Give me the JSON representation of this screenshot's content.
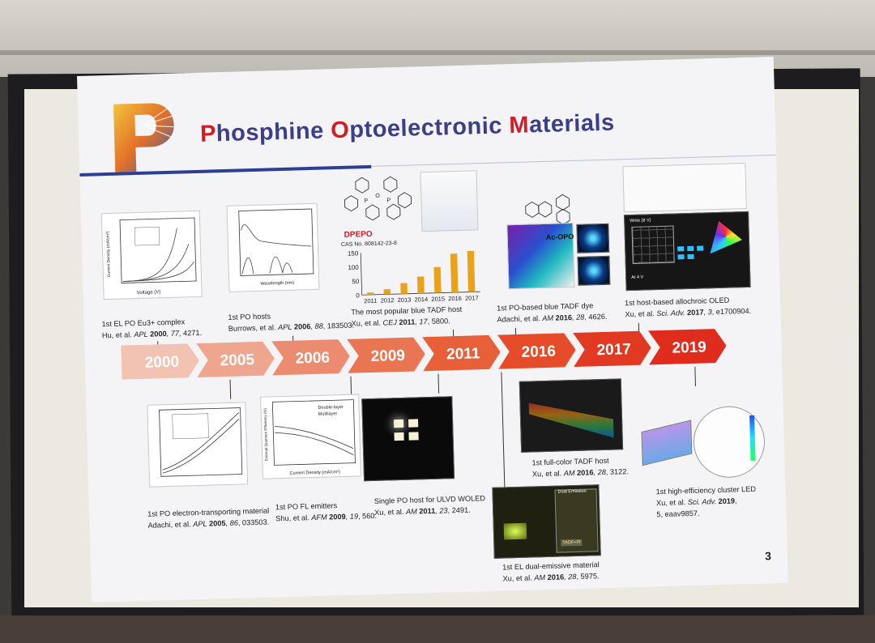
{
  "slide": {
    "title_parts": [
      {
        "text": "P",
        "red": true
      },
      {
        "text": "hosphine ",
        "red": false
      },
      {
        "text": "O",
        "red": true
      },
      {
        "text": "ptoelectronic ",
        "red": false
      },
      {
        "text": "M",
        "red": true
      },
      {
        "text": "aterials",
        "red": false
      }
    ],
    "page_number": "3",
    "logo_letter": "P"
  },
  "timeline": {
    "years": [
      "2000",
      "2005",
      "2006",
      "2009",
      "2011",
      "2016",
      "2017",
      "2019"
    ],
    "colors": [
      "#f2c2b3",
      "#eea68f",
      "#eb8c70",
      "#ea7552",
      "#e8603a",
      "#e54d2a",
      "#e23a22",
      "#df2c1c"
    ]
  },
  "top_captions": [
    {
      "line1": "1st EL PO Eu3+ complex",
      "line2_a": "Hu, et al. ",
      "line2_j": "APL",
      "line2_y": " 2000",
      "line2_v": ", 77",
      "line2_p": ", 4271."
    },
    {
      "line1": "1st PO hosts",
      "line2_a": "Burrows, et al. ",
      "line2_j": "APL",
      "line2_y": " 2006",
      "line2_v": ", 88",
      "line2_p": ", 183503."
    },
    {
      "line1": "The most popular blue TADF host",
      "line2_a": "Xu, et al. ",
      "line2_j": "CEJ",
      "line2_y": " 2011",
      "line2_v": ", 17",
      "line2_p": ", 5800."
    },
    {
      "line1": "1st PO-based blue TADF dye",
      "line2_a": "Adachi, et al. ",
      "line2_j": "AM",
      "line2_y": " 2016",
      "line2_v": ", 28",
      "line2_p": ", 4626."
    },
    {
      "line1": "1st host-based allochroic OLED",
      "line2_a": "Xu, et al. ",
      "line2_j": "Sci. Adv.",
      "line2_y": " 2017",
      "line2_v": ", 3",
      "line2_p": ", e1700904."
    }
  ],
  "bottom_captions": [
    {
      "line1": "1st PO electron-transporting material",
      "line2_a": "Adachi, et al. ",
      "line2_j": "APL",
      "line2_y": " 2005",
      "line2_v": ", 86",
      "line2_p": ", 033503."
    },
    {
      "line1": "1st PO FL emitters",
      "line2_a": "Shu, et al. ",
      "line2_j": "AFM",
      "line2_y": " 2009",
      "line2_v": ", 19",
      "line2_p": ", 560."
    },
    {
      "line1": "Single PO host for ULVD WOLED",
      "line2_a": "Xu, et al. ",
      "line2_j": "AM",
      "line2_y": " 2011",
      "line2_v": ", 23",
      "line2_p": ", 2491."
    },
    {
      "line1": "1st full-color TADF host",
      "line2_a": "Xu, et al. ",
      "line2_j": "AM",
      "line2_y": " 2016",
      "line2_v": ", 28",
      "line2_p": ", 3122."
    },
    {
      "line1": "1st EL dual-emissive material",
      "line2_a": "Xu, et al. ",
      "line2_j": "AM",
      "line2_y": " 2016",
      "line2_v": ", 28",
      "line2_p": ", 5975."
    },
    {
      "line1": "1st high-efficiency cluster LED",
      "line2_a": "Xu, et al. ",
      "line2_j": "Sci. Adv.",
      "line2_y": " 2019",
      "line2_v": ",",
      "line2_p": "",
      "line3": "5, eaav9857."
    }
  ],
  "figure_labels": {
    "dpepo": "DPEPO",
    "cas": "CAS No. 808142-23-8",
    "ac_opo": "Ac-OPO",
    "tadf_pt": "TADF+Pt",
    "dual_emission": "Dual Emission",
    "at4v": "At 4 V",
    "write": "Write (8 V)",
    "double_layer": "Double-layer",
    "multilayer": "Multilayer",
    "xlabel_voltage": "Voltage (V)",
    "ylabel_current": "Current Density (mA/cm²)",
    "xlabel_wavelength": "Wavelength (nm)",
    "xlabel_cd": "Current Density (mA/cm²)",
    "ylabel_eqe": "External Quantum Efficiency (%)"
  },
  "chart_data": {
    "type": "bar",
    "categories": [
      "2011",
      "2012",
      "2013",
      "2014",
      "2015",
      "2016",
      "2017"
    ],
    "values": [
      8,
      18,
      38,
      60,
      92,
      138,
      146
    ],
    "yticks": [
      0,
      50,
      100,
      150
    ],
    "ylim": [
      0,
      150
    ],
    "bar_color": "#e9a21a"
  }
}
